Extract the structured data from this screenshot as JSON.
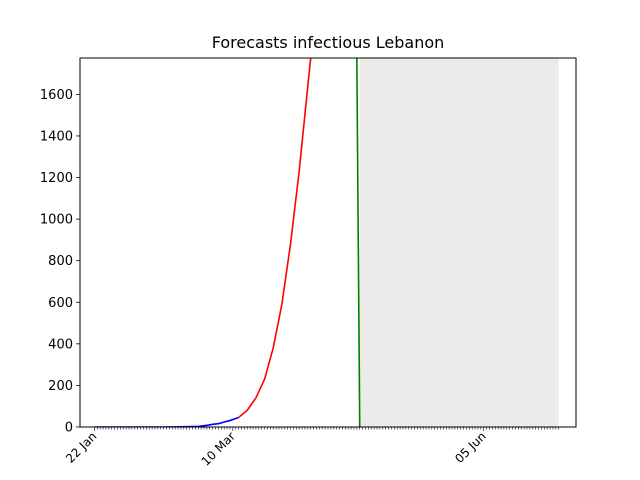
{
  "chart_data": {
    "type": "line",
    "title": "Forecasts infectious Lebanon",
    "xlabel": "",
    "ylabel": "",
    "x_start": "2020-01-22",
    "x_end": "2020-07-01",
    "xlim": [
      "2020-01-17",
      "2020-07-07"
    ],
    "ylim": [
      0,
      1775
    ],
    "yticks": [
      0,
      200,
      400,
      600,
      800,
      1000,
      1200,
      1400,
      1600
    ],
    "xtick_labels": [
      {
        "label": "22 Jan",
        "date": "2020-01-22"
      },
      {
        "label": "10 Mar",
        "date": "2020-03-10"
      },
      {
        "label": "05 Jun",
        "date": "2020-06-05"
      }
    ],
    "shaded_region": {
      "from": "2020-04-23",
      "to": "2020-07-01",
      "color": "#ebebeb"
    },
    "grid": false,
    "series": [
      {
        "color": "#0000ff",
        "points": [
          {
            "x": "2020-01-22",
            "y": 0
          },
          {
            "x": "2020-02-15",
            "y": 0
          },
          {
            "x": "2020-02-21",
            "y": 1
          },
          {
            "x": "2020-02-27",
            "y": 3
          },
          {
            "x": "2020-03-01",
            "y": 8
          },
          {
            "x": "2020-03-03",
            "y": 13
          },
          {
            "x": "2020-03-05",
            "y": 16
          },
          {
            "x": "2020-03-07",
            "y": 24
          },
          {
            "x": "2020-03-09",
            "y": 31
          },
          {
            "x": "2020-03-11",
            "y": 41
          },
          {
            "x": "2020-03-12",
            "y": 46
          }
        ]
      },
      {
        "color": "#ff0000",
        "points": [
          {
            "x": "2020-03-12",
            "y": 46
          },
          {
            "x": "2020-03-15",
            "y": 80
          },
          {
            "x": "2020-03-18",
            "y": 140
          },
          {
            "x": "2020-03-21",
            "y": 230
          },
          {
            "x": "2020-03-24",
            "y": 380
          },
          {
            "x": "2020-03-27",
            "y": 590
          },
          {
            "x": "2020-03-30",
            "y": 880
          },
          {
            "x": "2020-04-02",
            "y": 1230
          },
          {
            "x": "2020-04-05",
            "y": 1640
          },
          {
            "x": "2020-04-06",
            "y": 1775
          }
        ]
      },
      {
        "color": "#008000",
        "points": [
          {
            "x": "2020-04-22",
            "y": 1775
          },
          {
            "x": "2020-04-23",
            "y": 0
          }
        ]
      }
    ]
  }
}
